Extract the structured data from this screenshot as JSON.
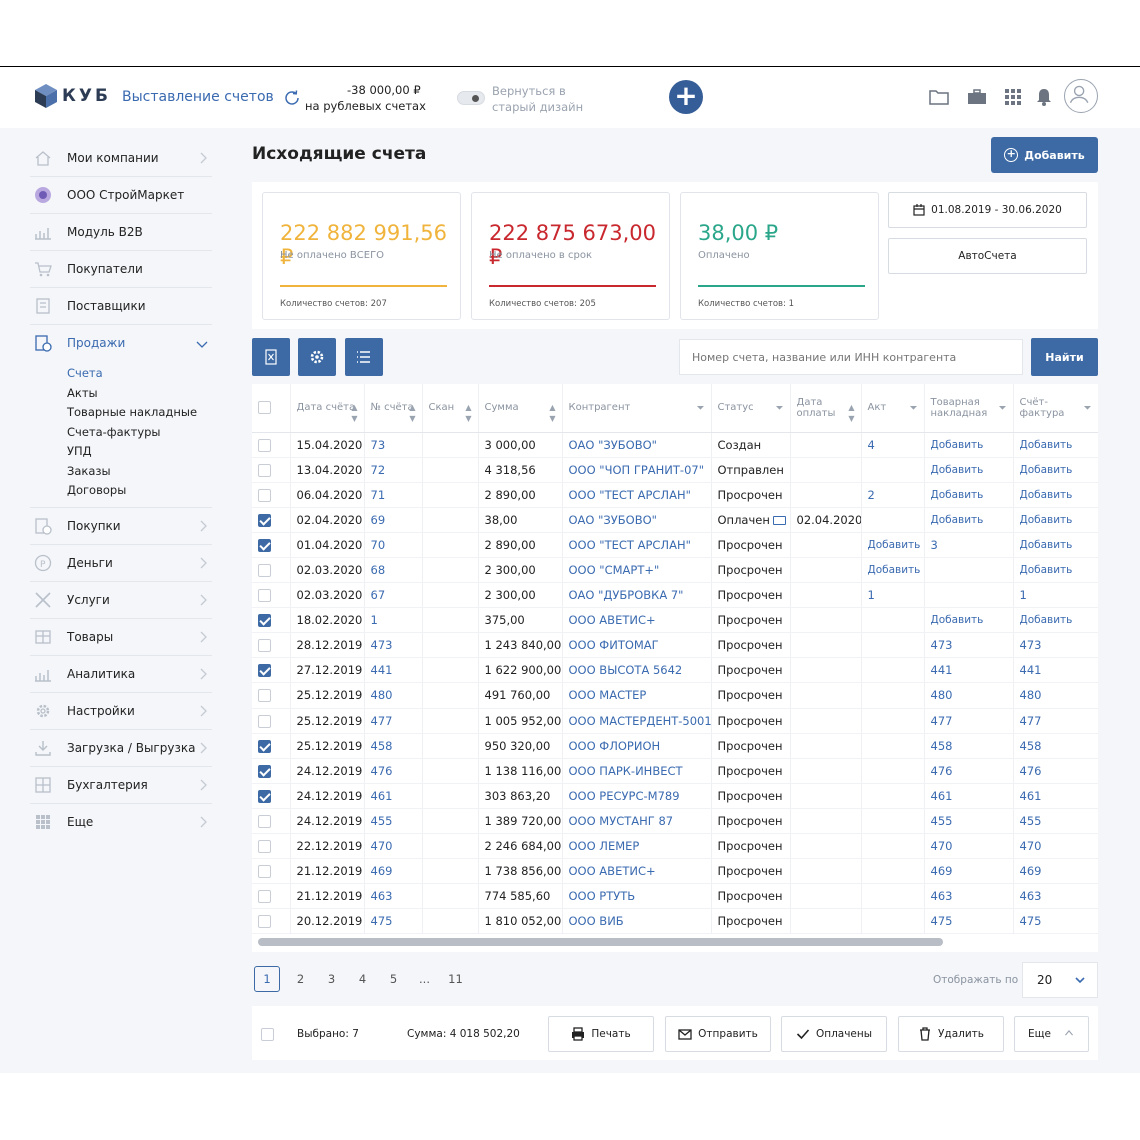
{
  "header": {
    "logo_text": "КУБ",
    "app_name": "Выставление счетов",
    "balance_amount": "-38 000,00 ₽",
    "balance_label": "на рублевых счетах",
    "old_design": "Вернуться в старый дизайн"
  },
  "sidebar": {
    "items": [
      {
        "label": "Мои компании",
        "icon": "home-icon"
      },
      {
        "label": "ООО СтройМаркет",
        "icon": "company-icon"
      },
      {
        "label": "Модуль B2B",
        "icon": "chart-icon"
      },
      {
        "label": "Покупатели",
        "icon": "cart-icon"
      },
      {
        "label": "Поставщики",
        "icon": "supplier-icon"
      },
      {
        "label": "Продажи",
        "icon": "sales-icon"
      }
    ],
    "sales_submenu": [
      "Счета",
      "Акты",
      "Товарные накладные",
      "Счета-фактуры",
      "УПД",
      "Заказы",
      "Договоры"
    ],
    "items_after": [
      {
        "label": "Покупки",
        "icon": "purchases-icon"
      },
      {
        "label": "Деньги",
        "icon": "money-icon"
      },
      {
        "label": "Услуги",
        "icon": "services-icon"
      },
      {
        "label": "Товары",
        "icon": "goods-icon"
      },
      {
        "label": "Аналитика",
        "icon": "analytics-icon"
      },
      {
        "label": "Настройки",
        "icon": "settings-icon"
      },
      {
        "label": "Загрузка / Выгрузка",
        "icon": "upload-icon"
      },
      {
        "label": "Бухгалтерия",
        "icon": "accounting-icon"
      },
      {
        "label": "Еще",
        "icon": "grid-icon"
      }
    ]
  },
  "page": {
    "title": "Исходящие счета",
    "add_label": "Добавить"
  },
  "stats": [
    {
      "value": "222 882 991,56 ₽",
      "label": "Не оплачено ВСЕГО",
      "count": "Количество счетов: 207",
      "color": "#f0b43c"
    },
    {
      "value": "222 875 673,00 ₽",
      "label": "Не оплачено в срок",
      "count": "Количество счетов: 205",
      "color": "#c8282e"
    },
    {
      "value": "38,00 ₽",
      "label": "Оплачено",
      "count": "Количество счетов: 1",
      "color": "#2aa68a"
    }
  ],
  "date_range": "01.08.2019 - 30.06.2020",
  "auto_invoices": "АвтоСчета",
  "search": {
    "placeholder": "Номер счета, название или ИНН контрагента",
    "button": "Найти"
  },
  "table": {
    "headers": {
      "date": "Дата счёта",
      "number": "№ счёта",
      "scan": "Скан",
      "sum": "Сумма",
      "contractor": "Контрагент",
      "status": "Статус",
      "pay_date": "Дата оплаты",
      "act": "Акт",
      "waybill": "Товарная накладная",
      "invoice": "Счёт-фактура"
    },
    "rows": [
      {
        "checked": false,
        "date": "15.04.2020",
        "number": "73",
        "sum": "3 000,00",
        "contractor": "ОАО \"ЗУБОВО\"",
        "status": "Создан",
        "pay_date": "",
        "act": "4",
        "waybill": "Добавить",
        "invoice": "Добавить"
      },
      {
        "checked": false,
        "date": "13.04.2020",
        "number": "72",
        "sum": "4 318,56",
        "contractor": "ООО \"ЧОП ГРАНИТ-07\"",
        "status": "Отправлен",
        "pay_date": "",
        "act": "",
        "waybill": "Добавить",
        "invoice": "Добавить"
      },
      {
        "checked": false,
        "date": "06.04.2020",
        "number": "71",
        "sum": "2 890,00",
        "contractor": "ООО \"ТЕСТ АРСЛАН\"",
        "status": "Просрочен",
        "pay_date": "",
        "act": "2",
        "waybill": "Добавить",
        "invoice": "Добавить"
      },
      {
        "checked": true,
        "date": "02.04.2020",
        "number": "69",
        "sum": "38,00",
        "contractor": "ОАО \"ЗУБОВО\"",
        "status": "Оплачен",
        "pay_date": "02.04.2020",
        "act": "",
        "waybill": "Добавить",
        "invoice": "Добавить"
      },
      {
        "checked": true,
        "date": "01.04.2020",
        "number": "70",
        "sum": "2 890,00",
        "contractor": "ООО \"ТЕСТ АРСЛАН\"",
        "status": "Просрочен",
        "pay_date": "",
        "act": "Добавить",
        "waybill": "3",
        "invoice": "Добавить"
      },
      {
        "checked": false,
        "date": "02.03.2020",
        "number": "68",
        "sum": "2 300,00",
        "contractor": "ООО \"СМАРТ+\"",
        "status": "Просрочен",
        "pay_date": "",
        "act": "Добавить",
        "waybill": "",
        "invoice": "Добавить"
      },
      {
        "checked": false,
        "date": "02.03.2020",
        "number": "67",
        "sum": "2 300,00",
        "contractor": "ОАО \"ДУБРОВКА 7\"",
        "status": "Просрочен",
        "pay_date": "",
        "act": "1",
        "waybill": "",
        "invoice": "1"
      },
      {
        "checked": true,
        "date": "18.02.2020",
        "number": "1",
        "sum": "375,00",
        "contractor": "ООО АВЕТИС+",
        "status": "Просрочен",
        "pay_date": "",
        "act": "",
        "waybill": "Добавить",
        "invoice": "Добавить"
      },
      {
        "checked": false,
        "date": "28.12.2019",
        "number": "473",
        "sum": "1 243 840,00",
        "contractor": "ООО ФИТОМАГ",
        "status": "Просрочен",
        "pay_date": "",
        "act": "",
        "waybill": "473",
        "invoice": "473"
      },
      {
        "checked": true,
        "date": "27.12.2019",
        "number": "441",
        "sum": "1 622 900,00",
        "contractor": "ООО ВЫСОТА 5642",
        "status": "Просрочен",
        "pay_date": "",
        "act": "",
        "waybill": "441",
        "invoice": "441"
      },
      {
        "checked": false,
        "date": "25.12.2019",
        "number": "480",
        "sum": "491 760,00",
        "contractor": "ООО МАСТЕР",
        "status": "Просрочен",
        "pay_date": "",
        "act": "",
        "waybill": "480",
        "invoice": "480"
      },
      {
        "checked": false,
        "date": "25.12.2019",
        "number": "477",
        "sum": "1 005 952,00",
        "contractor": "ООО МАСТЕРДЕНТ-5001",
        "status": "Просрочен",
        "pay_date": "",
        "act": "",
        "waybill": "477",
        "invoice": "477"
      },
      {
        "checked": true,
        "date": "25.12.2019",
        "number": "458",
        "sum": "950 320,00",
        "contractor": "ООО ФЛОРИОН",
        "status": "Просрочен",
        "pay_date": "",
        "act": "",
        "waybill": "458",
        "invoice": "458"
      },
      {
        "checked": true,
        "date": "24.12.2019",
        "number": "476",
        "sum": "1 138 116,00",
        "contractor": "ООО ПАРК-ИНВЕСТ",
        "status": "Просрочен",
        "pay_date": "",
        "act": "",
        "waybill": "476",
        "invoice": "476"
      },
      {
        "checked": true,
        "date": "24.12.2019",
        "number": "461",
        "sum": "303 863,20",
        "contractor": "ООО РЕСУРС-М789",
        "status": "Просрочен",
        "pay_date": "",
        "act": "",
        "waybill": "461",
        "invoice": "461"
      },
      {
        "checked": false,
        "date": "24.12.2019",
        "number": "455",
        "sum": "1 389 720,00",
        "contractor": "ООО МУСТАНГ 87",
        "status": "Просрочен",
        "pay_date": "",
        "act": "",
        "waybill": "455",
        "invoice": "455"
      },
      {
        "checked": false,
        "date": "22.12.2019",
        "number": "470",
        "sum": "2 246 684,00",
        "contractor": "ООО ЛЕМЕР",
        "status": "Просрочен",
        "pay_date": "",
        "act": "",
        "waybill": "470",
        "invoice": "470"
      },
      {
        "checked": false,
        "date": "21.12.2019",
        "number": "469",
        "sum": "1 738 856,00",
        "contractor": "ООО АВЕТИС+",
        "status": "Просрочен",
        "pay_date": "",
        "act": "",
        "waybill": "469",
        "invoice": "469"
      },
      {
        "checked": false,
        "date": "21.12.2019",
        "number": "463",
        "sum": "774 585,60",
        "contractor": "ООО РТУТЬ",
        "status": "Просрочен",
        "pay_date": "",
        "act": "",
        "waybill": "463",
        "invoice": "463"
      },
      {
        "checked": false,
        "date": "20.12.2019",
        "number": "475",
        "sum": "1 810 052,00",
        "contractor": "ООО ВИБ",
        "status": "Просрочен",
        "pay_date": "",
        "act": "",
        "waybill": "475",
        "invoice": "475"
      }
    ]
  },
  "pagination": {
    "pages": [
      "1",
      "2",
      "3",
      "4",
      "5",
      "...",
      "11"
    ],
    "current": "1",
    "show_label": "Отображать по",
    "per_page": "20"
  },
  "bottom_bar": {
    "selected_label": "Выбрано:",
    "selected_count": "7",
    "sum_label": "Сумма:",
    "sum_value": "4 018 502,20",
    "print": "Печать",
    "send": "Отправить",
    "paid": "Оплачены",
    "delete": "Удалить",
    "more": "Еще"
  }
}
